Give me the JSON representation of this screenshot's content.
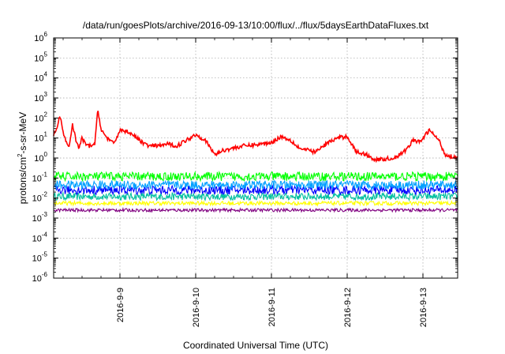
{
  "chart_data": {
    "type": "line",
    "title": "/data/run/goesPlots/archive/2016-09-13/10:00/flux/../flux/5daysEarthDataFluxes.txt",
    "xlabel": "Coordinated Universal Time (UTC)",
    "ylabel_parts": [
      "protons/cm",
      "2",
      "-s-sr-MeV"
    ],
    "yscale": "log",
    "ylim_exp": [
      -6,
      6
    ],
    "y_ticks": [
      {
        "base": "10",
        "exp": "-6"
      },
      {
        "base": "10",
        "exp": "-5"
      },
      {
        "base": "10",
        "exp": "-4"
      },
      {
        "base": "10",
        "exp": "-3"
      },
      {
        "base": "10",
        "exp": "-2"
      },
      {
        "base": "10",
        "exp": "-1"
      },
      {
        "base": "10",
        "exp": "0"
      },
      {
        "base": "10",
        "exp": "1"
      },
      {
        "base": "10",
        "exp": "2"
      },
      {
        "base": "10",
        "exp": "3"
      },
      {
        "base": "10",
        "exp": "4"
      },
      {
        "base": "10",
        "exp": "5"
      },
      {
        "base": "10",
        "exp": "6"
      }
    ],
    "xlim": [
      "2016-09-08 03:00",
      "2016-09-13 11:00"
    ],
    "x_ticks": [
      "2016-9-9",
      "2016-9-10",
      "2016-9-11",
      "2016-9-12",
      "2016-9-13"
    ],
    "grid": true,
    "series": [
      {
        "color": "#ff0000",
        "x": [
          "2016-09-08 03:00",
          "2016-09-08 04:00",
          "2016-09-08 05:00",
          "2016-09-08 06:00",
          "2016-09-08 07:00",
          "2016-09-08 08:00",
          "2016-09-08 09:00",
          "2016-09-08 10:00",
          "2016-09-08 11:00",
          "2016-09-08 12:00",
          "2016-09-08 13:00",
          "2016-09-08 14:00",
          "2016-09-08 15:00",
          "2016-09-08 16:00",
          "2016-09-08 17:00",
          "2016-09-08 18:00",
          "2016-09-08 19:00",
          "2016-09-08 20:00",
          "2016-09-08 22:00",
          "2016-09-09 00:00",
          "2016-09-09 03:00",
          "2016-09-09 06:00",
          "2016-09-09 09:00",
          "2016-09-09 12:00",
          "2016-09-09 15:00",
          "2016-09-09 18:00",
          "2016-09-10 00:00",
          "2016-09-10 03:00",
          "2016-09-10 06:00",
          "2016-09-10 09:00",
          "2016-09-10 15:00",
          "2016-09-10 21:00",
          "2016-09-11 00:00",
          "2016-09-11 03:00",
          "2016-09-11 06:00",
          "2016-09-11 09:00",
          "2016-09-11 14:00",
          "2016-09-11 18:00",
          "2016-09-11 21:00",
          "2016-09-12 00:00",
          "2016-09-12 03:00",
          "2016-09-12 06:00",
          "2016-09-12 09:00",
          "2016-09-12 15:00",
          "2016-09-12 18:00",
          "2016-09-12 21:00",
          "2016-09-12 23:00",
          "2016-09-13 02:00",
          "2016-09-13 05:00",
          "2016-09-13 07:00",
          "2016-09-13 11:00"
        ],
        "values": [
          15,
          30,
          120,
          20,
          6,
          4,
          50,
          8,
          3,
          10,
          5,
          4,
          4,
          5,
          250,
          30,
          15,
          10,
          5,
          25,
          20,
          8,
          4,
          4,
          5,
          4,
          15,
          8,
          1.5,
          2.5,
          4,
          5,
          6,
          12,
          8,
          3,
          2,
          6,
          10,
          12,
          2,
          1.5,
          0.8,
          1,
          2,
          8,
          6,
          25,
          8,
          1.5,
          1
        ]
      },
      {
        "color": "#00ff00",
        "x": [
          "2016-09-08 03:00",
          "2016-09-09 03:00",
          "2016-09-10 03:00",
          "2016-09-11 03:00",
          "2016-09-12 03:00",
          "2016-09-13 11:00"
        ],
        "values": [
          0.12,
          0.12,
          0.12,
          0.12,
          0.12,
          0.12
        ]
      },
      {
        "color": "#00a0ff",
        "x": [
          "2016-09-08 03:00",
          "2016-09-09 03:00",
          "2016-09-10 03:00",
          "2016-09-11 03:00",
          "2016-09-12 03:00",
          "2016-09-13 11:00"
        ],
        "values": [
          0.045,
          0.045,
          0.045,
          0.045,
          0.045,
          0.045
        ]
      },
      {
        "color": "#0000ff",
        "x": [
          "2016-09-08 03:00",
          "2016-09-09 03:00",
          "2016-09-10 03:00",
          "2016-09-11 03:00",
          "2016-09-12 03:00",
          "2016-09-13 11:00"
        ],
        "values": [
          0.025,
          0.025,
          0.025,
          0.025,
          0.025,
          0.025
        ]
      },
      {
        "color": "#00c0a0",
        "x": [
          "2016-09-08 03:00",
          "2016-09-09 03:00",
          "2016-09-10 03:00",
          "2016-09-11 03:00",
          "2016-09-12 03:00",
          "2016-09-13 11:00"
        ],
        "values": [
          0.012,
          0.012,
          0.012,
          0.012,
          0.012,
          0.012
        ]
      },
      {
        "color": "#ffff00",
        "x": [
          "2016-09-08 03:00",
          "2016-09-09 03:00",
          "2016-09-10 03:00",
          "2016-09-11 03:00",
          "2016-09-12 03:00",
          "2016-09-13 11:00"
        ],
        "values": [
          0.0055,
          0.0055,
          0.0055,
          0.0055,
          0.0055,
          0.0055
        ]
      },
      {
        "color": "#800080",
        "x": [
          "2016-09-08 03:00",
          "2016-09-09 03:00",
          "2016-09-10 03:00",
          "2016-09-11 03:00",
          "2016-09-12 03:00",
          "2016-09-13 11:00"
        ],
        "values": [
          0.0025,
          0.0025,
          0.0025,
          0.0025,
          0.0025,
          0.0025
        ]
      }
    ]
  }
}
